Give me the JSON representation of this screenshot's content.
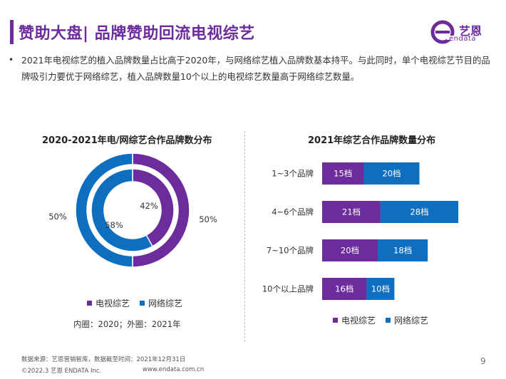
{
  "page": {
    "title": "赞助大盘| 品牌赞助回流电视综艺",
    "intro": "2021年电视综艺的植入品牌数量占比高于2020年，与网络综艺植入品牌数基本持平。与此同时，单个电视综艺节目的品牌吸引力要优于网络综艺，植入品牌数量10个以上的电视综艺数量高于网络综艺数量。",
    "page_number": "9"
  },
  "logo": {
    "name": "艺恩",
    "sub": "endata"
  },
  "footer": {
    "source": "数据来源：艺恩营销智库，数据截至时间：2021年12月31日",
    "copyright": "©2022.3 艺恩 ENDATA Inc.",
    "url": "www.endata.com.cn"
  },
  "colors": {
    "tv": "#6d2c9c",
    "net": "#0e6fc0",
    "accent": "#6d2c9c"
  },
  "chart_data": [
    {
      "type": "pie",
      "title": "2020-2021年电/网综艺合作品牌数分布",
      "note": "内圈：2020；外圈：2021年",
      "legend": [
        "电视综艺",
        "网络综艺"
      ],
      "rings": [
        {
          "name": "2020",
          "labels": [
            "电视综艺",
            "网络综艺"
          ],
          "values": [
            42,
            58
          ],
          "value_labels": [
            "42%",
            "58%"
          ]
        },
        {
          "name": "2021",
          "labels": [
            "电视综艺",
            "网络综艺"
          ],
          "values": [
            50,
            50
          ],
          "value_labels": [
            "50%",
            "50%"
          ]
        }
      ]
    },
    {
      "type": "bar",
      "orientation": "horizontal",
      "stacked": true,
      "title": "2021年综艺合作品牌数量分布",
      "categories": [
        "1~3个品牌",
        "4~6个品牌",
        "7~10个品牌",
        "10个以上品牌"
      ],
      "series": [
        {
          "name": "电视综艺",
          "values": [
            15,
            21,
            20,
            16
          ],
          "value_labels": [
            "15档",
            "21档",
            "20档",
            "16档"
          ]
        },
        {
          "name": "网络综艺",
          "values": [
            20,
            28,
            18,
            10
          ],
          "value_labels": [
            "20档",
            "28档",
            "18档",
            "10档"
          ]
        }
      ],
      "legend": [
        "电视综艺",
        "网络综艺"
      ]
    }
  ]
}
